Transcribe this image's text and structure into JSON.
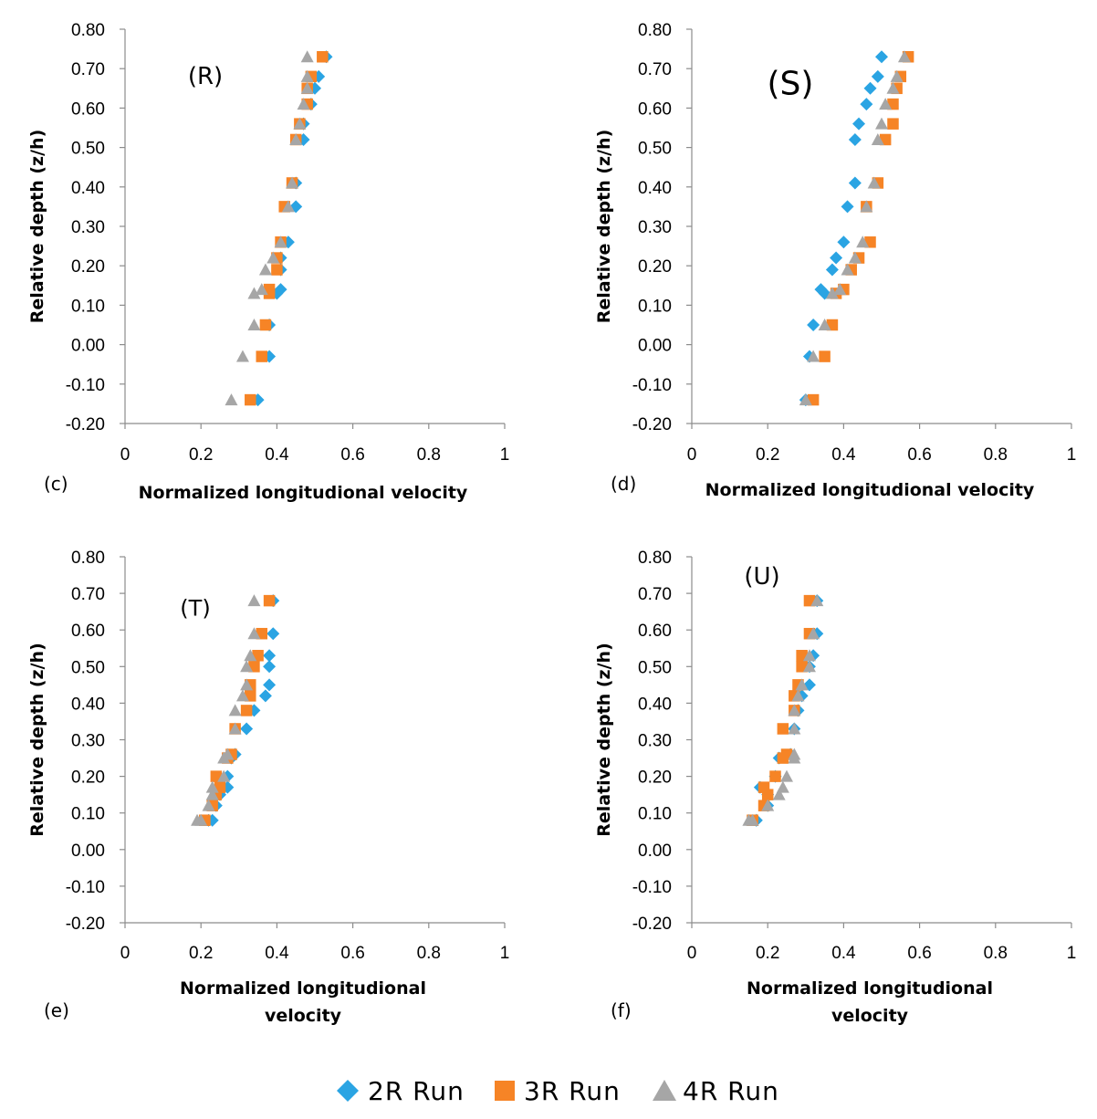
{
  "colors": {
    "2R Run": "#2aa4e3",
    "3R Run": "#f68426",
    "4R Run": "#a6a6a6",
    "axis": "#8c8c8c"
  },
  "legend": {
    "items": [
      "2R Run",
      "3R Run",
      "4R Run"
    ]
  },
  "chart_data": [
    {
      "type": "scatter",
      "panel_letter": "(c)",
      "label": "(R)",
      "xlabel": [
        "Normalized longitudional velocity"
      ],
      "ylabel": "Relative depth (z/h)",
      "xlim": [
        0,
        1
      ],
      "ylim": [
        -0.2,
        0.8
      ],
      "xticks": [
        "0",
        "0.2",
        "0.4",
        "0.6",
        "0.8",
        "1"
      ],
      "yticks": [
        "-0.20",
        "-0.10",
        "0.00",
        "0.10",
        "0.20",
        "0.30",
        "0.40",
        "0.50",
        "0.60",
        "0.70",
        "0.80"
      ],
      "series": [
        {
          "name": "2R Run",
          "marker": "diamond",
          "x": [
            0.53,
            0.51,
            0.5,
            0.49,
            0.47,
            0.47,
            0.45,
            0.45,
            0.43,
            0.41,
            0.41,
            0.4,
            0.41,
            0.38,
            0.38,
            0.35
          ],
          "y": [
            0.73,
            0.68,
            0.65,
            0.61,
            0.56,
            0.52,
            0.41,
            0.35,
            0.26,
            0.22,
            0.19,
            0.13,
            0.14,
            0.05,
            -0.03,
            -0.14
          ]
        },
        {
          "name": "3R Run",
          "marker": "square",
          "x": [
            0.52,
            0.49,
            0.48,
            0.48,
            0.46,
            0.45,
            0.44,
            0.42,
            0.41,
            0.4,
            0.4,
            0.38,
            0.38,
            0.37,
            0.36,
            0.33
          ],
          "y": [
            0.73,
            0.68,
            0.65,
            0.61,
            0.56,
            0.52,
            0.41,
            0.35,
            0.26,
            0.22,
            0.19,
            0.13,
            0.14,
            0.05,
            -0.03,
            -0.14
          ]
        },
        {
          "name": "4R Run",
          "marker": "triangle",
          "x": [
            0.48,
            0.48,
            0.48,
            0.47,
            0.46,
            0.45,
            0.44,
            0.43,
            0.41,
            0.39,
            0.37,
            0.34,
            0.36,
            0.34,
            0.31,
            0.28
          ],
          "y": [
            0.73,
            0.68,
            0.65,
            0.61,
            0.56,
            0.52,
            0.41,
            0.35,
            0.26,
            0.22,
            0.19,
            0.13,
            0.14,
            0.05,
            -0.03,
            -0.14
          ]
        }
      ]
    },
    {
      "type": "scatter",
      "panel_letter": "(d)",
      "label": "(S)",
      "xlabel": [
        "Normalized longitudional velocity"
      ],
      "ylabel": "Relative depth (z/h)",
      "xlim": [
        0,
        1
      ],
      "ylim": [
        -0.2,
        0.8
      ],
      "xticks": [
        "0",
        "0.2",
        "0.4",
        "0.6",
        "0.8",
        "1"
      ],
      "yticks": [
        "-0.20",
        "-0.10",
        "0.00",
        "0.10",
        "0.20",
        "0.30",
        "0.40",
        "0.50",
        "0.60",
        "0.70",
        "0.80"
      ],
      "series": [
        {
          "name": "2R Run",
          "marker": "diamond",
          "x": [
            0.5,
            0.49,
            0.47,
            0.46,
            0.44,
            0.43,
            0.43,
            0.41,
            0.4,
            0.38,
            0.37,
            0.35,
            0.34,
            0.32,
            0.31,
            0.3
          ],
          "y": [
            0.73,
            0.68,
            0.65,
            0.61,
            0.56,
            0.52,
            0.41,
            0.35,
            0.26,
            0.22,
            0.19,
            0.13,
            0.14,
            0.05,
            -0.03,
            -0.14
          ]
        },
        {
          "name": "3R Run",
          "marker": "square",
          "x": [
            0.57,
            0.55,
            0.54,
            0.53,
            0.53,
            0.51,
            0.49,
            0.46,
            0.47,
            0.44,
            0.42,
            0.38,
            0.4,
            0.37,
            0.35,
            0.32
          ],
          "y": [
            0.73,
            0.68,
            0.65,
            0.61,
            0.56,
            0.52,
            0.41,
            0.35,
            0.26,
            0.22,
            0.19,
            0.13,
            0.14,
            0.05,
            -0.03,
            -0.14
          ]
        },
        {
          "name": "4R Run",
          "marker": "triangle",
          "x": [
            0.56,
            0.54,
            0.53,
            0.51,
            0.5,
            0.49,
            0.48,
            0.46,
            0.45,
            0.43,
            0.41,
            0.37,
            0.39,
            0.35,
            0.32,
            0.3
          ],
          "y": [
            0.73,
            0.68,
            0.65,
            0.61,
            0.56,
            0.52,
            0.41,
            0.35,
            0.26,
            0.22,
            0.19,
            0.13,
            0.14,
            0.05,
            -0.03,
            -0.14
          ]
        }
      ]
    },
    {
      "type": "scatter",
      "panel_letter": "(e)",
      "label": "(T)",
      "xlabel": [
        "Normalized longitudional",
        "velocity"
      ],
      "ylabel": "Relative depth (z/h)",
      "xlim": [
        0,
        1
      ],
      "ylim": [
        -0.2,
        0.8
      ],
      "xticks": [
        "0",
        "0.2",
        "0.4",
        "0.6",
        "0.8",
        "1"
      ],
      "yticks": [
        "-0.20",
        "-0.10",
        "0.00",
        "0.10",
        "0.20",
        "0.30",
        "0.40",
        "0.50",
        "0.60",
        "0.70",
        "0.80"
      ],
      "series": [
        {
          "name": "2R Run",
          "marker": "diamond",
          "x": [
            0.39,
            0.39,
            0.38,
            0.38,
            0.38,
            0.37,
            0.34,
            0.32,
            0.29,
            0.28,
            0.27,
            0.27,
            0.25,
            0.24,
            0.23,
            0.22
          ],
          "y": [
            0.68,
            0.59,
            0.53,
            0.5,
            0.45,
            0.42,
            0.38,
            0.33,
            0.26,
            0.25,
            0.2,
            0.17,
            0.15,
            0.12,
            0.08,
            0.08
          ]
        },
        {
          "name": "3R Run",
          "marker": "square",
          "x": [
            0.38,
            0.36,
            0.35,
            0.34,
            0.33,
            0.33,
            0.32,
            0.29,
            0.28,
            0.27,
            0.24,
            0.25,
            0.24,
            0.23,
            0.21,
            0.21
          ],
          "y": [
            0.68,
            0.59,
            0.53,
            0.5,
            0.45,
            0.42,
            0.38,
            0.33,
            0.26,
            0.25,
            0.2,
            0.17,
            0.15,
            0.12,
            0.08,
            0.08
          ]
        },
        {
          "name": "4R Run",
          "marker": "triangle",
          "x": [
            0.34,
            0.34,
            0.33,
            0.32,
            0.32,
            0.31,
            0.29,
            0.29,
            0.27,
            0.26,
            0.26,
            0.23,
            0.23,
            0.22,
            0.2,
            0.19
          ],
          "y": [
            0.68,
            0.59,
            0.53,
            0.5,
            0.45,
            0.42,
            0.38,
            0.33,
            0.26,
            0.25,
            0.2,
            0.17,
            0.15,
            0.12,
            0.08,
            0.08
          ]
        }
      ]
    },
    {
      "type": "scatter",
      "panel_letter": "(f)",
      "label": "(U)",
      "xlabel": [
        "Normalized longitudional",
        "velocity"
      ],
      "ylabel": "Relative depth (z/h)",
      "xlim": [
        0,
        1
      ],
      "ylim": [
        -0.2,
        0.8
      ],
      "xticks": [
        "0",
        "0.2",
        "0.4",
        "0.6",
        "0.8",
        "1"
      ],
      "yticks": [
        "-0.20",
        "-0.10",
        "0.00",
        "0.10",
        "0.20",
        "0.30",
        "0.40",
        "0.50",
        "0.60",
        "0.70",
        "0.80"
      ],
      "series": [
        {
          "name": "2R Run",
          "marker": "diamond",
          "x": [
            0.33,
            0.33,
            0.32,
            0.31,
            0.31,
            0.29,
            0.28,
            0.27,
            0.26,
            0.23,
            0.22,
            0.18,
            0.2,
            0.2,
            0.17,
            0.17
          ],
          "y": [
            0.68,
            0.59,
            0.53,
            0.5,
            0.45,
            0.42,
            0.38,
            0.33,
            0.26,
            0.25,
            0.2,
            0.17,
            0.15,
            0.12,
            0.08,
            0.08
          ]
        },
        {
          "name": "3R Run",
          "marker": "square",
          "x": [
            0.31,
            0.31,
            0.29,
            0.29,
            0.28,
            0.27,
            0.27,
            0.24,
            0.25,
            0.24,
            0.22,
            0.19,
            0.2,
            0.19,
            0.16,
            0.16
          ],
          "y": [
            0.68,
            0.59,
            0.53,
            0.5,
            0.45,
            0.42,
            0.38,
            0.33,
            0.26,
            0.25,
            0.2,
            0.17,
            0.15,
            0.12,
            0.08,
            0.08
          ]
        },
        {
          "name": "4R Run",
          "marker": "triangle",
          "x": [
            0.33,
            0.32,
            0.31,
            0.31,
            0.29,
            0.28,
            0.27,
            0.27,
            0.27,
            0.27,
            0.25,
            0.24,
            0.23,
            0.2,
            0.16,
            0.15
          ],
          "y": [
            0.68,
            0.59,
            0.53,
            0.5,
            0.45,
            0.42,
            0.38,
            0.33,
            0.26,
            0.25,
            0.2,
            0.17,
            0.15,
            0.12,
            0.08,
            0.08
          ]
        }
      ]
    }
  ]
}
